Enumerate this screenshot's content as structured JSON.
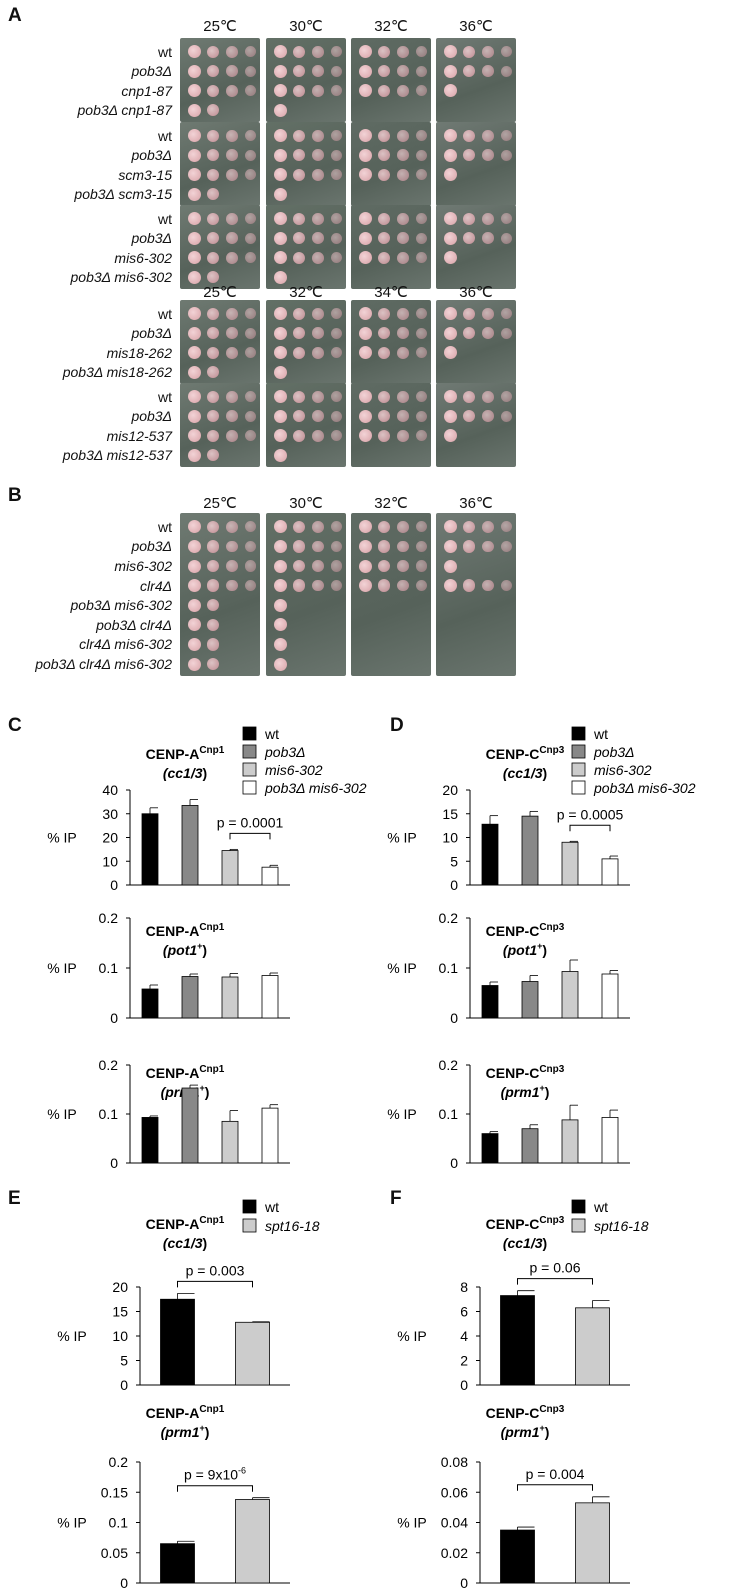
{
  "panels": {
    "A": "A",
    "B": "B",
    "C": "C",
    "D": "D",
    "E": "E",
    "F": "F"
  },
  "panel_A": {
    "blocks": [
      {
        "temps": [
          "25℃",
          "30℃",
          "32℃",
          "36℃"
        ],
        "strains": [
          "wt",
          "pob3Δ",
          "cnp1-87",
          "pob3Δ cnp1-87"
        ]
      },
      {
        "temps": [],
        "strains": [
          "wt",
          "pob3Δ",
          "scm3-15",
          "pob3Δ scm3-15"
        ]
      },
      {
        "temps": [],
        "strains": [
          "wt",
          "pob3Δ",
          "mis6-302",
          "pob3Δ mis6-302"
        ]
      },
      {
        "temps": [
          "25℃",
          "32℃",
          "34℃",
          "36℃"
        ],
        "strains": [
          "wt",
          "pob3Δ",
          "mis18-262",
          "pob3Δ mis18-262"
        ]
      },
      {
        "temps": [],
        "strains": [
          "wt",
          "pob3Δ",
          "mis12-537",
          "pob3Δ mis12-537"
        ]
      }
    ]
  },
  "panel_B": {
    "temps": [
      "25℃",
      "30℃",
      "32℃",
      "36℃"
    ],
    "strains": [
      "wt",
      "pob3Δ",
      "mis6-302",
      "clr4Δ",
      "pob3Δ mis6-302",
      "pob3Δ clr4Δ",
      "clr4Δ mis6-302",
      "pob3Δ clr4Δ mis6-302"
    ]
  },
  "legend_CD": [
    "wt",
    "pob3Δ",
    "mis6-302",
    "pob3Δ mis6-302"
  ],
  "legend_EF": [
    "wt",
    "spt16-18"
  ],
  "colors": {
    "wt": "#000000",
    "pob3": "#888888",
    "mis6": "#cccccc",
    "double": "#ffffff",
    "spt16": "#cccccc"
  },
  "ylabel": "% IP",
  "chart_data": [
    {
      "id": "C1",
      "type": "bar",
      "title": "CENP-ACnp1",
      "locus": "(cc1/3)",
      "categories": [
        "wt",
        "pob3Δ",
        "mis6-302",
        "pob3Δ mis6-302"
      ],
      "values": [
        30,
        33.5,
        14.5,
        7.5
      ],
      "errors": [
        2.5,
        2.5,
        0.5,
        0.8
      ],
      "ylim": [
        0,
        40
      ],
      "ticks": [
        0,
        10,
        20,
        30,
        40
      ],
      "ylabel": "% IP",
      "annotation": "p = 0.0001"
    },
    {
      "id": "C2",
      "type": "bar",
      "title": "CENP-ACnp1",
      "locus": "(pot1+)",
      "categories": [
        "wt",
        "pob3Δ",
        "mis6-302",
        "pob3Δ mis6-302"
      ],
      "values": [
        0.058,
        0.083,
        0.082,
        0.085
      ],
      "errors": [
        0.008,
        0.005,
        0.007,
        0.005
      ],
      "ylim": [
        0,
        0.2
      ],
      "ticks": [
        0,
        0.1,
        0.2
      ],
      "ylabel": "% IP"
    },
    {
      "id": "C3",
      "type": "bar",
      "title": "CENP-ACnp1",
      "locus": "(prm1+)",
      "categories": [
        "wt",
        "pob3Δ",
        "mis6-302",
        "pob3Δ mis6-302"
      ],
      "values": [
        0.093,
        0.153,
        0.085,
        0.112
      ],
      "errors": [
        0.003,
        0.006,
        0.022,
        0.007
      ],
      "ylim": [
        0,
        0.2
      ],
      "ticks": [
        0,
        0.1,
        0.2
      ],
      "ylabel": "% IP"
    },
    {
      "id": "D1",
      "type": "bar",
      "title": "CENP-CCnp3",
      "locus": "(cc1/3)",
      "categories": [
        "wt",
        "pob3Δ",
        "mis6-302",
        "pob3Δ mis6-302"
      ],
      "values": [
        12.8,
        14.5,
        9,
        5.5
      ],
      "errors": [
        1.8,
        1.0,
        0.2,
        0.6
      ],
      "ylim": [
        0,
        20
      ],
      "ticks": [
        0,
        5,
        10,
        15,
        20
      ],
      "ylabel": "% IP",
      "annotation": "p = 0.0005"
    },
    {
      "id": "D2",
      "type": "bar",
      "title": "CENP-CCnp3",
      "locus": "(pot1+)",
      "categories": [
        "wt",
        "pob3Δ",
        "mis6-302",
        "pob3Δ mis6-302"
      ],
      "values": [
        0.065,
        0.073,
        0.093,
        0.088
      ],
      "errors": [
        0.007,
        0.012,
        0.023,
        0.007
      ],
      "ylim": [
        0,
        0.2
      ],
      "ticks": [
        0,
        0.1,
        0.2
      ],
      "ylabel": "% IP"
    },
    {
      "id": "D3",
      "type": "bar",
      "title": "CENP-CCnp3",
      "locus": "(prm1+)",
      "categories": [
        "wt",
        "pob3Δ",
        "mis6-302",
        "pob3Δ mis6-302"
      ],
      "values": [
        0.06,
        0.07,
        0.088,
        0.093
      ],
      "errors": [
        0.004,
        0.008,
        0.03,
        0.015
      ],
      "ylim": [
        0,
        0.2
      ],
      "ticks": [
        0,
        0.1,
        0.2
      ],
      "ylabel": "% IP"
    },
    {
      "id": "E1",
      "type": "bar",
      "title": "CENP-ACnp1",
      "locus": "(cc1/3)",
      "categories": [
        "wt",
        "spt16-18"
      ],
      "values": [
        17.5,
        12.8
      ],
      "errors": [
        1.2,
        0.1
      ],
      "ylim": [
        0,
        20
      ],
      "ticks": [
        0,
        5,
        10,
        15,
        20
      ],
      "ylabel": "% IP",
      "annotation": "p = 0.003"
    },
    {
      "id": "E2",
      "type": "bar",
      "title": "CENP-ACnp1",
      "locus": "(prm1+)",
      "categories": [
        "wt",
        "spt16-18"
      ],
      "values": [
        0.065,
        0.138
      ],
      "errors": [
        0.004,
        0.003
      ],
      "ylim": [
        0,
        0.2
      ],
      "ticks": [
        0,
        0.05,
        0.1,
        0.15,
        0.2
      ],
      "ylabel": "% IP",
      "annotation": "p = 9x10-6"
    },
    {
      "id": "F1",
      "type": "bar",
      "title": "CENP-CCnp3",
      "locus": "(cc1/3)",
      "categories": [
        "wt",
        "spt16-18"
      ],
      "values": [
        7.3,
        6.3
      ],
      "errors": [
        0.4,
        0.6
      ],
      "ylim": [
        0,
        8
      ],
      "ticks": [
        0,
        2,
        4,
        6,
        8
      ],
      "ylabel": "% IP",
      "annotation": "p = 0.06"
    },
    {
      "id": "F2",
      "type": "bar",
      "title": "CENP-CCnp3",
      "locus": "(prm1+)",
      "categories": [
        "wt",
        "spt16-18"
      ],
      "values": [
        0.035,
        0.053
      ],
      "errors": [
        0.002,
        0.004
      ],
      "ylim": [
        0,
        0.08
      ],
      "ticks": [
        0,
        0.02,
        0.04,
        0.06,
        0.08
      ],
      "ylabel": "% IP",
      "annotation": "p = 0.004"
    }
  ]
}
